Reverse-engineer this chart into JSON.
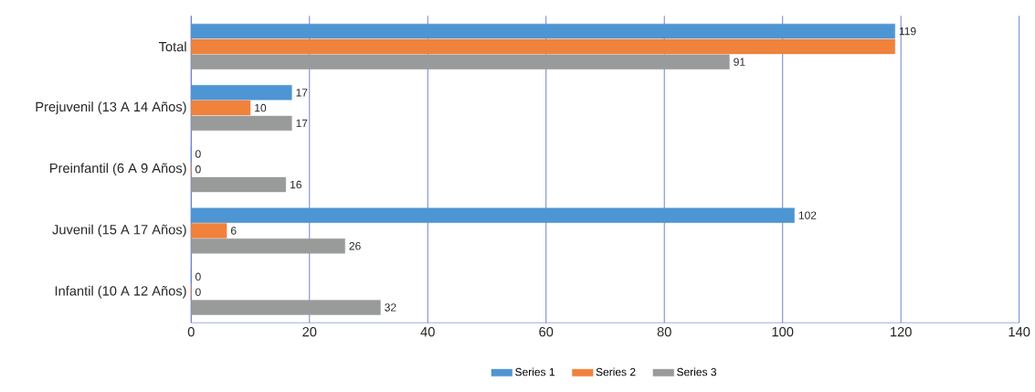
{
  "chart_data": {
    "type": "bar",
    "orientation": "horizontal",
    "categories": [
      "Total",
      "Prejuvenil (13 A 14 Años)",
      "Preinfantil (6 A 9 Años)",
      "Juvenil (15 A 17 Años)",
      "Infantil (10 A 12 Años)"
    ],
    "series": [
      {
        "name": "Series 1",
        "color": "#4e95d3",
        "values": [
          119,
          17,
          0,
          102,
          0
        ],
        "value_labels": [
          "119",
          "17",
          "0",
          "102",
          "0"
        ]
      },
      {
        "name": "Series 2",
        "color": "#f0823c",
        "values": [
          119,
          10,
          0,
          6,
          0
        ],
        "value_labels": [
          null,
          "10",
          "0",
          "6",
          "0"
        ]
      },
      {
        "name": "Series 3",
        "color": "#999b9b",
        "values": [
          91,
          17,
          16,
          26,
          32
        ],
        "value_labels": [
          "91",
          "17",
          "16",
          "26",
          "32"
        ]
      }
    ],
    "xlim": [
      0,
      140
    ],
    "xticks": [
      0,
      20,
      40,
      60,
      80,
      100,
      120,
      140
    ],
    "grid": "x",
    "legend": "bottom"
  }
}
